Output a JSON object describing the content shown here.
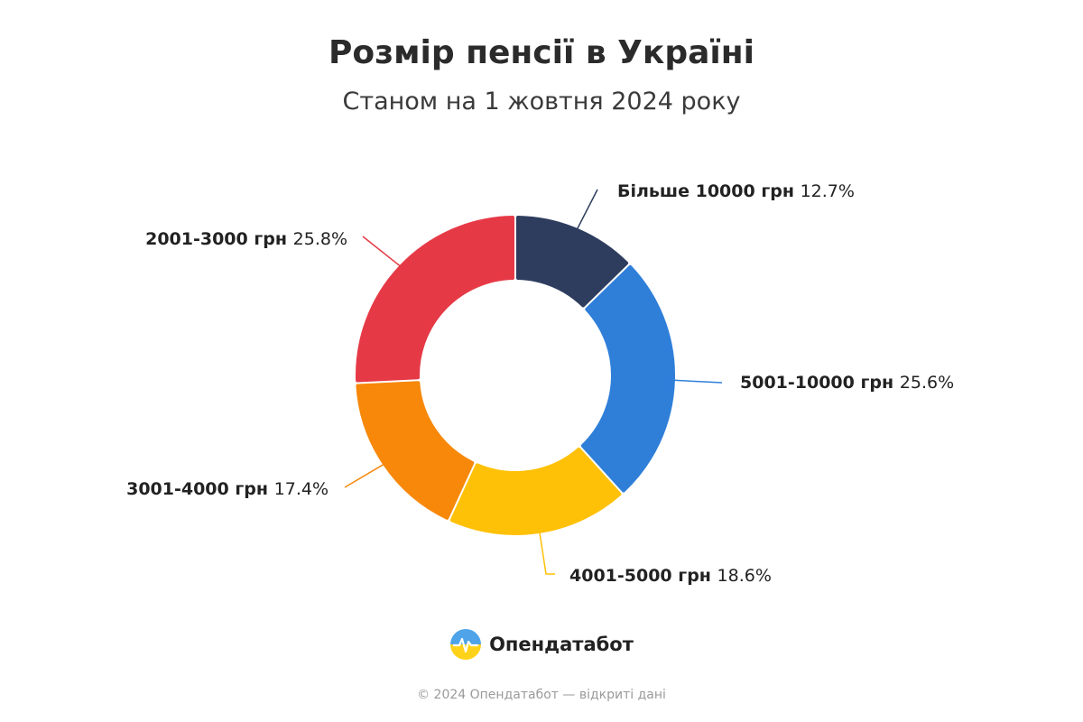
{
  "header": {
    "title": "Розмір пенсії в Україні",
    "subtitle": "Станом на 1 жовтня 2024 року"
  },
  "chart_data": {
    "type": "pie",
    "categories": [
      "Більше 10000 грн",
      "5001-10000 грн",
      "4001-5000 грн",
      "3001-4000 грн",
      "2001-3000 грн"
    ],
    "values": [
      12.7,
      25.6,
      18.6,
      17.4,
      25.8
    ],
    "value_labels": [
      "12.7%",
      "25.6%",
      "18.6%",
      "17.4%",
      "25.8%"
    ],
    "colors": [
      "#2e3d5e",
      "#2f7fd9",
      "#ffc107",
      "#f7880a",
      "#e63946"
    ],
    "donut": true
  },
  "brand": {
    "name": "Опендатабот",
    "icon": "opendatabot-logo-icon"
  },
  "footer": {
    "text": "© 2024 Опендатабот — відкриті дані"
  }
}
